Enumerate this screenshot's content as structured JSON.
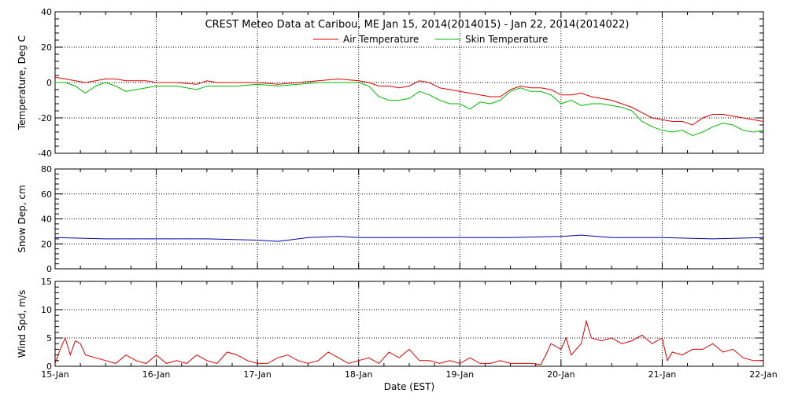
{
  "chart_data": {
    "type": "line",
    "title": "CREST Meteo Data at Caribou, ME   Jan 15, 2014(2014015) - Jan 22, 2014(2014022)",
    "xlabel": "Date (EST)",
    "x_tick_labels": [
      "15-Jan",
      "16-Jan",
      "17-Jan",
      "18-Jan",
      "19-Jan",
      "20-Jan",
      "21-Jan",
      "22-Jan"
    ],
    "x_range_days": [
      0,
      7
    ],
    "colors": {
      "air": "#dd0000",
      "skin": "#00bb00",
      "snow": "#0000aa",
      "wind": "#dd0000"
    },
    "panels": [
      {
        "ylabel": "Temperature, Deg C",
        "ylim": [
          -40,
          40
        ],
        "yticks": [
          -40,
          -20,
          0,
          20,
          40
        ],
        "legend_placement": "top-center",
        "series": [
          {
            "name": "Air Temperature",
            "color": "#dd0000",
            "x": [
              0,
              0.1,
              0.2,
              0.3,
              0.4,
              0.5,
              0.6,
              0.7,
              0.8,
              0.9,
              1.0,
              1.2,
              1.4,
              1.5,
              1.6,
              1.8,
              2.0,
              2.2,
              2.4,
              2.6,
              2.8,
              3.0,
              3.1,
              3.2,
              3.3,
              3.4,
              3.5,
              3.6,
              3.7,
              3.8,
              3.9,
              4.0,
              4.1,
              4.2,
              4.3,
              4.4,
              4.5,
              4.6,
              4.7,
              4.8,
              4.9,
              5.0,
              5.1,
              5.2,
              5.3,
              5.4,
              5.5,
              5.6,
              5.7,
              5.8,
              5.9,
              6.0,
              6.1,
              6.2,
              6.3,
              6.4,
              6.5,
              6.6,
              6.7,
              6.8,
              6.9,
              7.0
            ],
            "y": [
              3,
              2,
              1,
              0,
              1,
              2,
              2,
              1,
              1,
              1,
              0,
              0,
              -1,
              1,
              0,
              0,
              0,
              -1,
              0,
              1,
              2,
              1,
              0,
              -2,
              -2,
              -3,
              -2,
              1,
              0,
              -3,
              -4,
              -5,
              -6,
              -7,
              -8,
              -8,
              -4,
              -2,
              -3,
              -3,
              -4,
              -7,
              -7,
              -6,
              -8,
              -9,
              -10,
              -12,
              -14,
              -17,
              -20,
              -21,
              -22,
              -22,
              -24,
              -20,
              -18,
              -18,
              -19,
              -20,
              -21,
              -22
            ]
          },
          {
            "name": "Skin Temperature",
            "color": "#00bb00",
            "x": [
              0,
              0.1,
              0.2,
              0.3,
              0.4,
              0.5,
              0.6,
              0.7,
              0.8,
              0.9,
              1.0,
              1.2,
              1.4,
              1.5,
              1.6,
              1.8,
              2.0,
              2.2,
              2.4,
              2.6,
              2.8,
              3.0,
              3.1,
              3.2,
              3.3,
              3.4,
              3.5,
              3.6,
              3.7,
              3.8,
              3.9,
              4.0,
              4.1,
              4.2,
              4.3,
              4.4,
              4.5,
              4.6,
              4.7,
              4.8,
              4.9,
              5.0,
              5.1,
              5.2,
              5.3,
              5.4,
              5.5,
              5.6,
              5.7,
              5.8,
              5.9,
              6.0,
              6.1,
              6.2,
              6.3,
              6.4,
              6.5,
              6.6,
              6.7,
              6.8,
              6.9,
              7.0
            ],
            "y": [
              0,
              0,
              -2,
              -6,
              -2,
              0,
              -2,
              -5,
              -4,
              -3,
              -2,
              -2,
              -4,
              -2,
              -2,
              -2,
              -1,
              -2,
              -1,
              0,
              0,
              0,
              -2,
              -8,
              -10,
              -10,
              -9,
              -5,
              -7,
              -10,
              -12,
              -12,
              -15,
              -11,
              -12,
              -10,
              -5,
              -3,
              -5,
              -5,
              -7,
              -12,
              -10,
              -13,
              -12,
              -12,
              -13,
              -14,
              -16,
              -22,
              -25,
              -27,
              -28,
              -27,
              -30,
              -28,
              -25,
              -23,
              -24,
              -27,
              -28,
              -27
            ]
          }
        ]
      },
      {
        "ylabel": "Snow Dep, cm",
        "ylim": [
          0,
          80
        ],
        "yticks": [
          0,
          20,
          40,
          60,
          80
        ],
        "series": [
          {
            "name": "",
            "color": "#0000aa",
            "x": [
              0,
              0.5,
              1.0,
              1.5,
              2.0,
              2.2,
              2.5,
              2.8,
              3.0,
              3.5,
              4.0,
              4.5,
              5.0,
              5.2,
              5.5,
              6.0,
              6.5,
              7.0
            ],
            "y": [
              25,
              24,
              24,
              24,
              23,
              22,
              25,
              26,
              25,
              25,
              25,
              25,
              26,
              27,
              25,
              25,
              24,
              25
            ]
          }
        ]
      },
      {
        "ylabel": "Wind Spd, m/s",
        "ylim": [
          0,
          15
        ],
        "yticks": [
          0,
          5,
          10,
          15
        ],
        "series": [
          {
            "name": "",
            "color": "#dd0000",
            "x": [
              0,
              0.05,
              0.1,
              0.15,
              0.2,
              0.25,
              0.3,
              0.4,
              0.5,
              0.6,
              0.7,
              0.8,
              0.9,
              1.0,
              1.1,
              1.2,
              1.3,
              1.4,
              1.5,
              1.6,
              1.7,
              1.8,
              1.9,
              2.0,
              2.1,
              2.2,
              2.3,
              2.4,
              2.5,
              2.6,
              2.7,
              2.8,
              2.9,
              3.0,
              3.1,
              3.2,
              3.3,
              3.4,
              3.5,
              3.6,
              3.7,
              3.8,
              3.9,
              4.0,
              4.1,
              4.2,
              4.3,
              4.4,
              4.5,
              4.6,
              4.7,
              4.8,
              4.85,
              4.9,
              5.0,
              5.05,
              5.1,
              5.2,
              5.25,
              5.3,
              5.4,
              5.5,
              5.6,
              5.7,
              5.8,
              5.9,
              6.0,
              6.05,
              6.1,
              6.2,
              6.3,
              6.4,
              6.5,
              6.6,
              6.7,
              6.8,
              6.9,
              7.0
            ],
            "y": [
              0.5,
              3,
              5,
              2,
              4.5,
              4,
              2,
              1.5,
              1,
              0.5,
              2,
              1,
              0.5,
              2,
              0.5,
              1,
              0.5,
              2,
              1,
              0.5,
              2.5,
              2,
              1,
              0.5,
              0.5,
              1.5,
              2,
              1,
              0.5,
              1,
              2.5,
              1.5,
              0.5,
              1,
              1.5,
              0.5,
              2.5,
              1.5,
              3,
              1,
              1,
              0.5,
              1,
              0.5,
              1.5,
              0.5,
              0.5,
              1,
              0.5,
              0.5,
              0.5,
              0.3,
              2,
              4,
              3,
              5,
              2,
              4,
              8,
              5,
              4.5,
              5,
              4,
              4.5,
              5.5,
              4,
              5,
              1,
              2.5,
              2,
              3,
              3,
              4,
              2.5,
              3,
              1.5,
              1,
              1
            ]
          }
        ]
      }
    ]
  }
}
